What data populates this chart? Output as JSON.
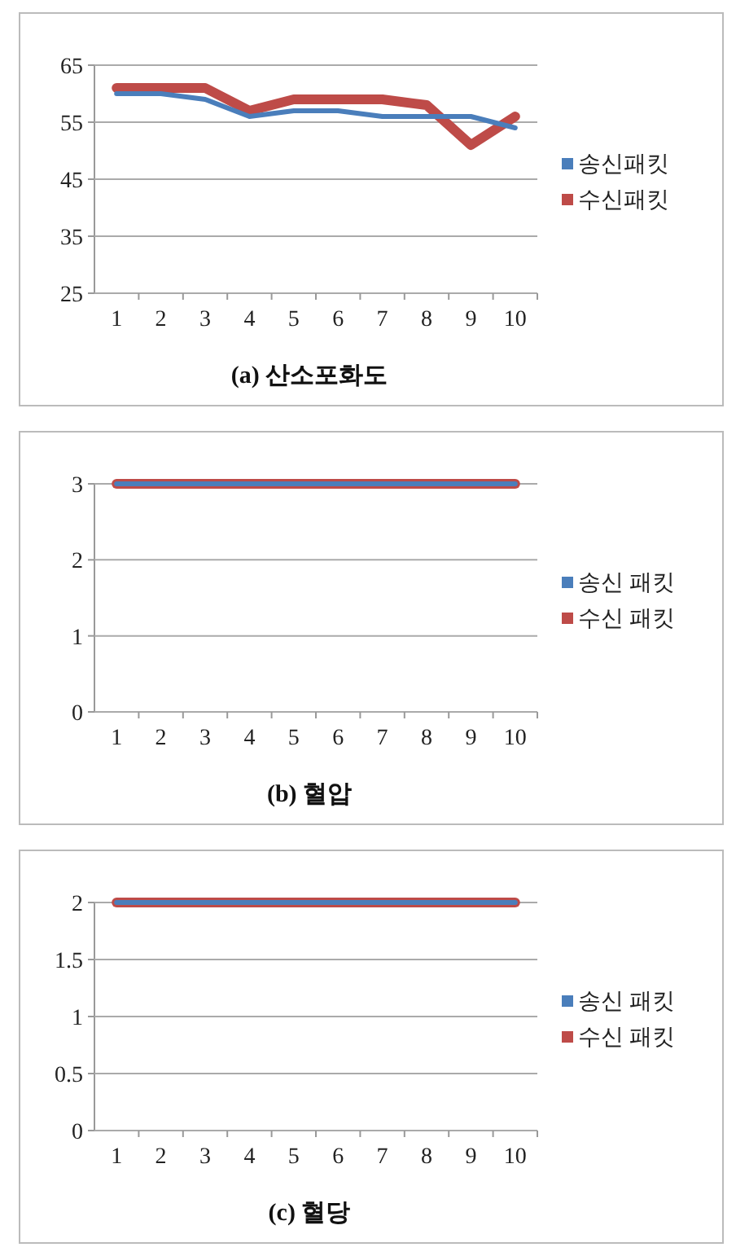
{
  "chart_data": [
    {
      "type": "line",
      "title": "(a) 산소포화도",
      "categories": [
        "1",
        "2",
        "3",
        "4",
        "5",
        "6",
        "7",
        "8",
        "9",
        "10"
      ],
      "ylim": [
        25,
        65
      ],
      "yticks": [
        25,
        35,
        45,
        55,
        65
      ],
      "grid": "y",
      "legend": "right",
      "marker": "none",
      "series": [
        {
          "name": "송신패킷",
          "color": "#4a7ebb",
          "values": [
            60,
            60,
            59,
            56,
            57,
            57,
            56,
            56,
            56,
            54
          ]
        },
        {
          "name": "수신패킷",
          "color": "#be4b48",
          "values": [
            61,
            61,
            61,
            57,
            59,
            59,
            59,
            58,
            51,
            56
          ]
        }
      ]
    },
    {
      "type": "line",
      "title": "(b) 혈압",
      "categories": [
        "1",
        "2",
        "3",
        "4",
        "5",
        "6",
        "7",
        "8",
        "9",
        "10"
      ],
      "ylim": [
        0,
        3
      ],
      "yticks": [
        0,
        1,
        2,
        3
      ],
      "grid": "y",
      "legend": "right",
      "marker": "none",
      "series": [
        {
          "name": "송신 패킷",
          "color": "#4a7ebb",
          "values": [
            3,
            3,
            3,
            3,
            3,
            3,
            3,
            3,
            3,
            3
          ]
        },
        {
          "name": "수신 패킷",
          "color": "#be4b48",
          "values": [
            3,
            3,
            3,
            3,
            3,
            3,
            3,
            3,
            3,
            3
          ]
        }
      ]
    },
    {
      "type": "line",
      "title": "(c) 혈당",
      "categories": [
        "1",
        "2",
        "3",
        "4",
        "5",
        "6",
        "7",
        "8",
        "9",
        "10"
      ],
      "ylim": [
        0,
        2
      ],
      "yticks": [
        0,
        0.5,
        1,
        1.5,
        2
      ],
      "grid": "y",
      "legend": "right",
      "marker": "none",
      "series": [
        {
          "name": "송신 패킷",
          "color": "#4a7ebb",
          "values": [
            2,
            2,
            2,
            2,
            2,
            2,
            2,
            2,
            2,
            2
          ]
        },
        {
          "name": "수신 패킷",
          "color": "#be4b48",
          "values": [
            2,
            2,
            2,
            2,
            2,
            2,
            2,
            2,
            2,
            2
          ]
        }
      ]
    }
  ]
}
